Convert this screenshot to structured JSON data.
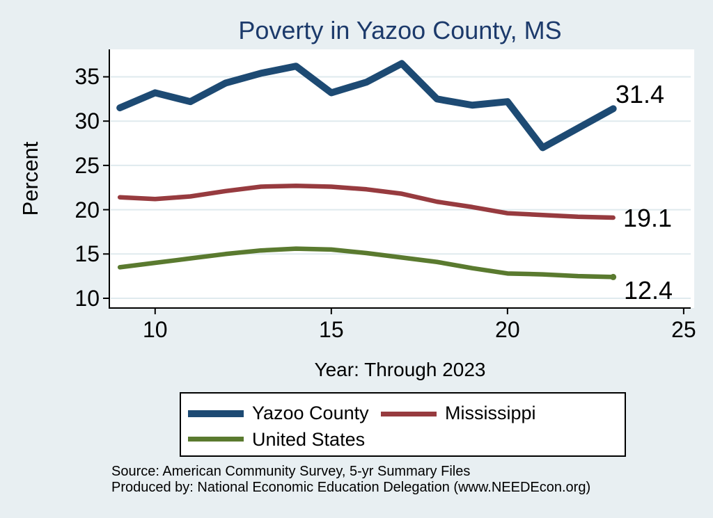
{
  "title": "Poverty in Yazoo County, MS",
  "axes": {
    "y_title": "Percent",
    "x_title": "Year: Through 2023"
  },
  "colors": {
    "background": "#e8eff2",
    "plot_background": "#ffffff",
    "grid": "#dfeaee",
    "axis": "#000000",
    "title_text": "#1c3a6b",
    "navy": "#1d4a73",
    "maroon": "#973b3f",
    "olive": "#5a7a2f"
  },
  "notes": {
    "source": "Source: American Community Survey, 5-yr Summary Files",
    "produced_by": "Produced by: National Economic Education Delegation (www.NEEDEcon.org)"
  },
  "chart_data": {
    "type": "line",
    "title": "Poverty in Yazoo County, MS",
    "xlabel": "Year: Through 2023",
    "ylabel": "Percent",
    "x_units": "two-digit year (2009–2023)",
    "x": [
      9,
      10,
      11,
      12,
      13,
      14,
      15,
      16,
      17,
      18,
      19,
      20,
      21,
      22,
      23
    ],
    "series": [
      {
        "name": "Yazoo County",
        "color": "#1d4a73",
        "line_width": 10,
        "values": [
          31.5,
          33.2,
          32.2,
          34.3,
          35.4,
          36.2,
          33.2,
          34.4,
          36.5,
          32.5,
          31.8,
          32.2,
          27.0,
          29.2,
          31.4
        ],
        "end_label": "31.4",
        "end_marker": false
      },
      {
        "name": "Mississippi",
        "color": "#973b3f",
        "line_width": 6.5,
        "values": [
          21.4,
          21.2,
          21.5,
          22.1,
          22.6,
          22.7,
          22.6,
          22.3,
          21.8,
          20.9,
          20.3,
          19.6,
          19.4,
          19.2,
          19.1
        ],
        "end_label": "19.1",
        "end_marker": false
      },
      {
        "name": "United States",
        "color": "#5a7a2f",
        "line_width": 6.5,
        "values": [
          13.5,
          14.0,
          14.5,
          15.0,
          15.4,
          15.6,
          15.5,
          15.1,
          14.6,
          14.1,
          13.4,
          12.8,
          12.7,
          12.5,
          12.4
        ],
        "end_label": "12.4",
        "end_marker": true
      }
    ],
    "x_ticks": [
      10,
      15,
      20,
      25
    ],
    "y_ticks": [
      10,
      15,
      20,
      25,
      30,
      35
    ],
    "xlim": [
      8.7,
      25.2
    ],
    "ylim": [
      8.9,
      38.1
    ],
    "grid": "horizontal",
    "legend_position": "bottom"
  }
}
